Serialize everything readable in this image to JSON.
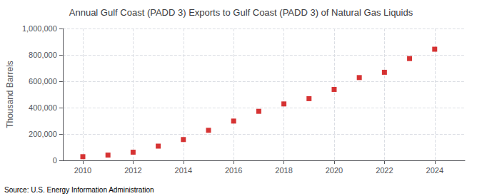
{
  "chart_data": {
    "type": "scatter",
    "title": "Annual Gulf Coast (PADD 3) Exports to Gulf Coast (PADD 3) of Natural Gas Liquids",
    "ylabel": "Thousand Barrels",
    "annotation": "Source: U.S. Energy Information Administration",
    "x": [
      2010,
      2011,
      2012,
      2013,
      2014,
      2015,
      2016,
      2017,
      2018,
      2019,
      2020,
      2021,
      2022,
      2023,
      2024
    ],
    "values": [
      28000,
      40000,
      62000,
      108000,
      158000,
      228000,
      298000,
      372000,
      428000,
      468000,
      538000,
      628000,
      668000,
      772000,
      843000
    ],
    "color": "#cc0000",
    "marker": "square",
    "xlim": [
      2009.2,
      2025.2
    ],
    "xticks": [
      2010,
      2012,
      2014,
      2016,
      2018,
      2020,
      2022,
      2024
    ],
    "ylim": [
      0,
      1000000
    ],
    "yticks": [
      0,
      {
        "value": 200000,
        "label": "200,000"
      },
      {
        "value": 400000,
        "label": "400,000"
      },
      {
        "value": 600000,
        "label": "600,000"
      },
      {
        "value": 800000,
        "label": "800,000"
      },
      {
        "value": 1000000,
        "label": "1,000,000"
      }
    ],
    "grid": true
  }
}
